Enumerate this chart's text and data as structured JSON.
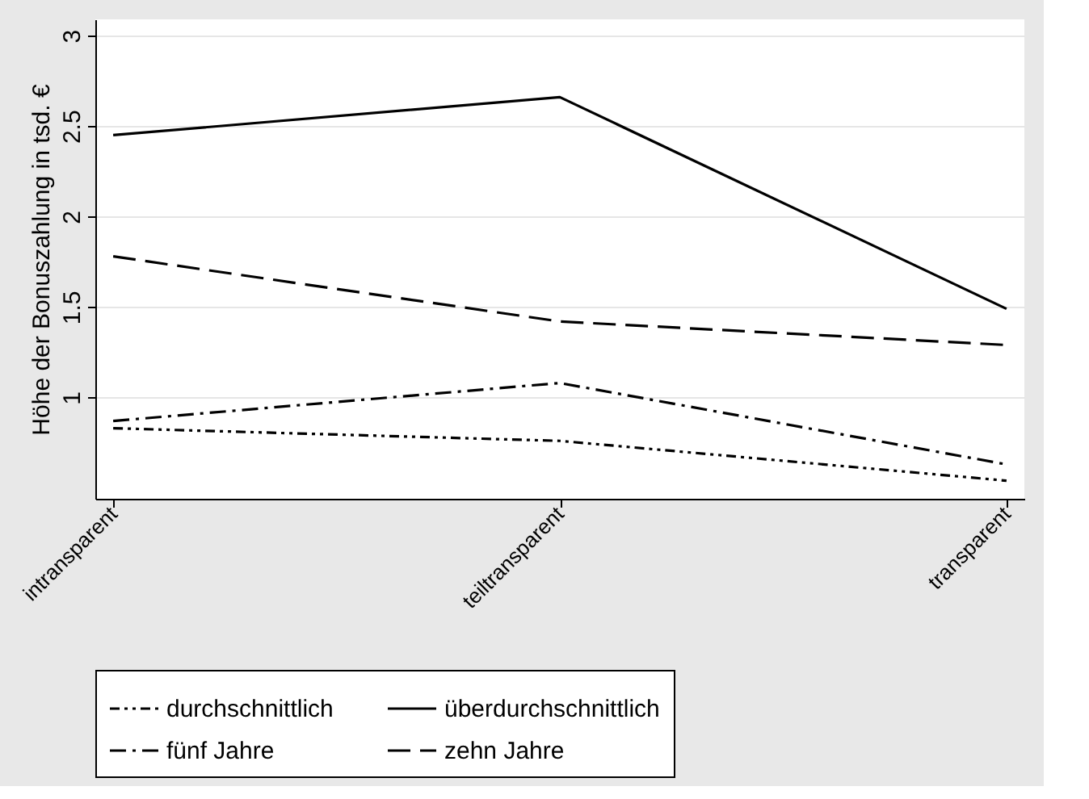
{
  "chart_data": {
    "type": "line",
    "ylabel": "Höhe der Bonuszahlung in tsd. €",
    "categories": [
      "intransparent",
      "teiltransparent",
      "transparent"
    ],
    "series": [
      {
        "name": "durchschnittlich",
        "color": "#000000",
        "line_style": "dashdotdot",
        "values": [
          0.83,
          0.76,
          0.54
        ]
      },
      {
        "name": "überdurchschnittlich",
        "color": "#000000",
        "line_style": "solid",
        "values": [
          2.45,
          2.66,
          1.49
        ]
      },
      {
        "name": "fünf Jahre",
        "color": "#000000",
        "line_style": "dashdot",
        "values": [
          0.87,
          1.08,
          0.63
        ]
      },
      {
        "name": "zehn Jahre",
        "color": "#000000",
        "line_style": "dashed",
        "values": [
          1.78,
          1.42,
          1.29
        ]
      }
    ],
    "ylim": [
      0.44,
      3.09
    ],
    "yticks": [
      1,
      1.5,
      2,
      2.5,
      3
    ],
    "grid": "y",
    "legend": "bottom",
    "marker": "none"
  }
}
